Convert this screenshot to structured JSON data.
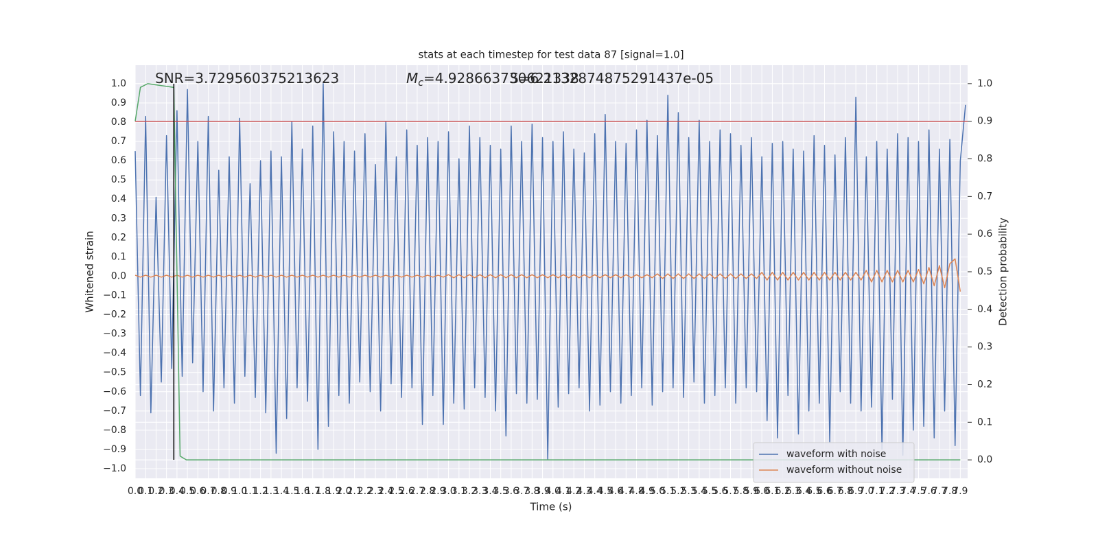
{
  "chart_data": {
    "type": "line",
    "title": "stats at each timestep for test data 87 [signal=1.0]",
    "xlabel": "Time (s)",
    "ylabel": "Whitened strain",
    "y2label": "Detection probability",
    "annotations": [
      {
        "text": "SNR=3.729560375213623"
      },
      {
        "symbol": "M",
        "subscript": "c",
        "text": "=4.928663730621338"
      },
      {
        "text": "S=6.2132874875291437e-05"
      }
    ],
    "legend": "lower right",
    "grid": true,
    "xlim": [
      0,
      7.97
    ],
    "ylim": [
      -1.05,
      1.096
    ],
    "y2lim": [
      -0.049,
      1.049
    ],
    "xticks": [
      {
        "value": 0,
        "label": "0.0"
      },
      0.1,
      0.2,
      0.3,
      0.4,
      0.5,
      0.6,
      0.7,
      0.8,
      0.9,
      {
        "value": 1,
        "label": "1.0"
      },
      1.1,
      1.2,
      1.3,
      1.4,
      1.5,
      1.6,
      1.7,
      1.8,
      1.9,
      {
        "value": 2,
        "label": "2.0"
      },
      2.1,
      2.2,
      2.3,
      2.4,
      2.5,
      2.6,
      2.7,
      2.8,
      2.9,
      {
        "value": 3,
        "label": "3.0"
      },
      3.1,
      3.2,
      3.3,
      3.4,
      3.5,
      3.6,
      3.7,
      3.8,
      3.9,
      {
        "value": 4,
        "label": "4.0"
      },
      4.1,
      4.2,
      4.3,
      4.4,
      4.5,
      4.6,
      4.7,
      4.8,
      4.9,
      {
        "value": 5,
        "label": "5.0"
      },
      5.1,
      5.2,
      5.3,
      5.4,
      5.5,
      5.6,
      5.7,
      5.8,
      5.9,
      {
        "value": 6,
        "label": "6.0"
      },
      6.1,
      6.2,
      6.3,
      6.4,
      6.5,
      6.6,
      6.7,
      6.8,
      6.9,
      {
        "value": 7,
        "label": "7.0"
      },
      7.1,
      7.2,
      7.3,
      7.4,
      7.5,
      7.6,
      7.7,
      7.8,
      7.9
    ],
    "yticks": [
      {
        "value": -1,
        "label": "−1.0"
      },
      {
        "value": -0.9,
        "label": "−0.9"
      },
      {
        "value": -0.8,
        "label": "−0.8"
      },
      {
        "value": -0.7,
        "label": "−0.7"
      },
      {
        "value": -0.6,
        "label": "−0.6"
      },
      {
        "value": -0.5,
        "label": "−0.5"
      },
      {
        "value": -0.4,
        "label": "−0.4"
      },
      {
        "value": -0.3,
        "label": "−0.3"
      },
      {
        "value": -0.2,
        "label": "−0.2"
      },
      {
        "value": -0.1,
        "label": "−0.1"
      },
      {
        "value": 0,
        "label": "0.0"
      },
      0.1,
      0.2,
      0.3,
      0.4,
      0.5,
      0.6,
      0.7,
      0.8,
      0.9,
      {
        "value": 1,
        "label": "1.0"
      }
    ],
    "y2ticks": [
      {
        "value": 0,
        "label": "0.0"
      },
      0.1,
      0.2,
      0.3,
      0.4,
      0.5,
      0.6,
      0.7,
      0.8,
      0.9,
      {
        "value": 1,
        "label": "1.0"
      }
    ],
    "x": [
      0,
      0.05,
      0.1,
      0.15,
      0.2,
      0.25,
      0.3,
      0.35,
      0.4,
      0.45,
      0.5,
      0.55,
      0.6,
      0.65,
      0.7,
      0.75,
      0.8,
      0.85,
      0.9,
      0.95,
      1,
      1.05,
      1.1,
      1.15,
      1.2,
      1.25,
      1.3,
      1.35,
      1.4,
      1.45,
      1.5,
      1.55,
      1.6,
      1.65,
      1.7,
      1.75,
      1.8,
      1.85,
      1.9,
      1.95,
      2,
      2.05,
      2.1,
      2.15,
      2.2,
      2.25,
      2.3,
      2.35,
      2.4,
      2.45,
      2.5,
      2.55,
      2.6,
      2.65,
      2.7,
      2.75,
      2.8,
      2.85,
      2.9,
      2.95,
      3,
      3.05,
      3.1,
      3.15,
      3.2,
      3.25,
      3.3,
      3.35,
      3.4,
      3.45,
      3.5,
      3.55,
      3.6,
      3.65,
      3.7,
      3.75,
      3.8,
      3.85,
      3.9,
      3.95,
      4,
      4.05,
      4.1,
      4.15,
      4.2,
      4.25,
      4.3,
      4.35,
      4.4,
      4.45,
      4.5,
      4.55,
      4.6,
      4.65,
      4.7,
      4.75,
      4.8,
      4.85,
      4.9,
      4.95,
      5,
      5.05,
      5.1,
      5.15,
      5.2,
      5.25,
      5.3,
      5.35,
      5.4,
      5.45,
      5.5,
      5.55,
      5.6,
      5.65,
      5.7,
      5.75,
      5.8,
      5.85,
      5.9,
      5.95,
      6,
      6.05,
      6.1,
      6.15,
      6.2,
      6.25,
      6.3,
      6.35,
      6.4,
      6.45,
      6.5,
      6.55,
      6.6,
      6.65,
      6.7,
      6.75,
      6.8,
      6.85,
      6.9,
      6.95,
      7,
      7.05,
      7.1,
      7.15,
      7.2,
      7.25,
      7.3,
      7.35,
      7.4,
      7.45,
      7.5,
      7.55,
      7.6,
      7.65,
      7.7,
      7.75,
      7.8,
      7.85,
      7.9,
      7.95
    ],
    "series": [
      {
        "name": "waveform with noise",
        "color": "#4c72b0",
        "values": [
          0.65,
          -0.62,
          0.83,
          -0.71,
          0.41,
          -0.55,
          0.73,
          -0.48,
          0.86,
          -0.52,
          0.97,
          -0.45,
          0.7,
          -0.6,
          0.83,
          -0.7,
          0.55,
          -0.58,
          0.62,
          -0.66,
          0.82,
          -0.52,
          0.48,
          -0.63,
          0.6,
          -0.71,
          0.65,
          -0.92,
          0.62,
          -0.74,
          0.8,
          -0.58,
          0.66,
          -0.65,
          0.78,
          -0.9,
          1.0,
          -0.78,
          0.75,
          -0.62,
          0.7,
          -0.66,
          0.65,
          -0.55,
          0.74,
          -0.6,
          0.58,
          -0.7,
          0.8,
          -0.56,
          0.62,
          -0.63,
          0.76,
          -0.58,
          0.68,
          -0.77,
          0.72,
          -0.62,
          0.7,
          -0.77,
          0.75,
          -0.66,
          0.61,
          -0.69,
          0.78,
          -0.58,
          0.72,
          -0.63,
          0.68,
          -0.7,
          0.66,
          -0.83,
          0.78,
          -0.61,
          0.7,
          -0.66,
          0.79,
          -0.64,
          0.72,
          -0.95,
          0.7,
          -0.68,
          0.75,
          -0.61,
          0.66,
          -0.58,
          0.64,
          -0.7,
          0.74,
          -0.67,
          0.84,
          -0.6,
          0.7,
          -0.66,
          0.69,
          -0.62,
          0.76,
          -0.58,
          0.81,
          -0.67,
          0.73,
          -0.6,
          0.94,
          -0.58,
          0.85,
          -0.63,
          0.72,
          -0.55,
          0.81,
          -0.66,
          0.7,
          -0.62,
          0.76,
          -0.58,
          0.74,
          -0.66,
          0.68,
          -0.58,
          0.72,
          -0.6,
          0.62,
          -0.75,
          0.69,
          -0.84,
          0.7,
          -0.62,
          0.66,
          -0.82,
          0.65,
          -0.7,
          0.73,
          -0.66,
          0.68,
          -0.86,
          0.63,
          -0.6,
          0.72,
          -0.66,
          0.93,
          -0.7,
          0.62,
          -0.68,
          0.7,
          -0.9,
          0.66,
          -0.64,
          0.74,
          -0.93,
          0.72,
          -0.8,
          0.7,
          -0.78,
          0.76,
          -0.84,
          0.66,
          -0.7,
          0.71,
          -0.88,
          0.6,
          0.89
        ]
      },
      {
        "name": "waveform without noise",
        "color": "#dd8452",
        "values": [
          0.005,
          -0.005,
          0.005,
          -0.005,
          0.005,
          -0.005,
          0.005,
          -0.005,
          0.005,
          -0.005,
          0.005,
          -0.005,
          0.005,
          -0.005,
          0.005,
          -0.005,
          0.005,
          -0.005,
          0.005,
          -0.005,
          0.005,
          -0.005,
          0.005,
          -0.005,
          0.005,
          -0.005,
          0.005,
          -0.005,
          0.005,
          -0.005,
          0.005,
          -0.005,
          0.005,
          -0.005,
          0.005,
          -0.005,
          0.005,
          -0.005,
          0.005,
          -0.005,
          0.005,
          -0.005,
          0.005,
          -0.005,
          0.005,
          -0.005,
          0.005,
          -0.005,
          0.005,
          -0.005,
          0.005,
          -0.005,
          0.005,
          -0.005,
          0.005,
          -0.005,
          0.005,
          -0.005,
          0.005,
          -0.005,
          0.008,
          -0.008,
          0.008,
          -0.008,
          0.008,
          -0.008,
          0.008,
          -0.008,
          0.008,
          -0.008,
          0.008,
          -0.008,
          0.008,
          -0.008,
          0.008,
          -0.008,
          0.008,
          -0.008,
          0.008,
          -0.008,
          0.008,
          -0.008,
          0.008,
          -0.008,
          0.008,
          -0.008,
          0.008,
          -0.008,
          0.008,
          -0.008,
          0.008,
          -0.008,
          0.008,
          -0.008,
          0.008,
          -0.008,
          0.008,
          -0.008,
          0.008,
          -0.008,
          0.012,
          -0.012,
          0.012,
          -0.012,
          0.012,
          -0.012,
          0.012,
          -0.012,
          0.012,
          -0.012,
          0.012,
          -0.012,
          0.012,
          -0.012,
          0.012,
          -0.012,
          0.012,
          -0.012,
          0.012,
          -0.012,
          0.02,
          -0.02,
          0.02,
          -0.02,
          0.02,
          -0.02,
          0.02,
          -0.02,
          0.02,
          -0.02,
          0.02,
          -0.02,
          0.02,
          -0.02,
          0.02,
          -0.02,
          0.02,
          -0.02,
          0.02,
          -0.02,
          0.03,
          -0.03,
          0.03,
          -0.03,
          0.03,
          -0.03,
          0.03,
          -0.03,
          0.03,
          -0.03,
          0.035,
          -0.04,
          0.045,
          -0.05,
          0.055,
          -0.06,
          0.065,
          0.09,
          -0.08,
          null
        ]
      },
      {
        "color": "#55a868",
        "axis": "y2",
        "x": [
          0,
          0.05,
          0.12,
          0.37,
          0.43,
          0.49,
          7.9
        ],
        "values": [
          0.9,
          0.99,
          1.0,
          0.99,
          0.01,
          0.0,
          0.0
        ]
      }
    ],
    "hlines": [
      {
        "value": 0.9,
        "axis": "y2",
        "color": "#c44e52"
      }
    ],
    "vlines": [
      {
        "value": 0.37,
        "color": "#000000"
      }
    ]
  }
}
